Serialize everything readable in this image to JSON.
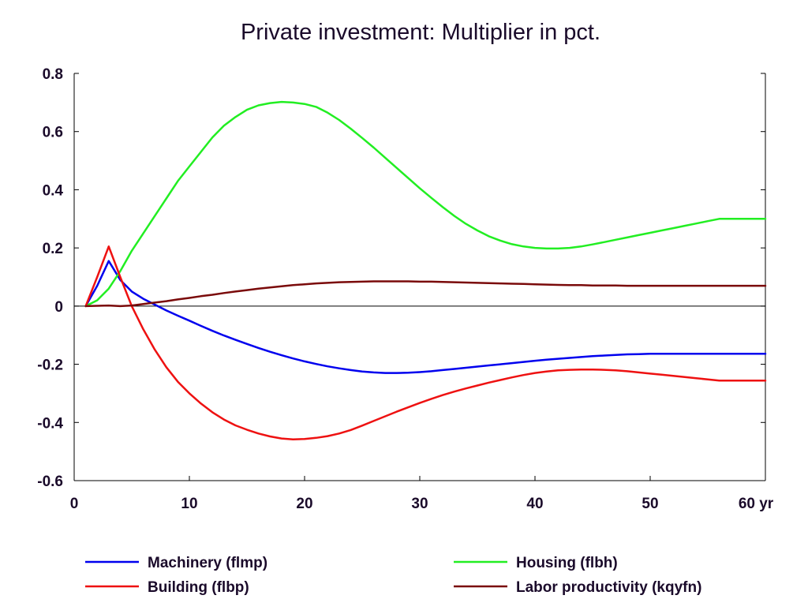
{
  "chart_data": {
    "type": "line",
    "title": "Private investment: Multiplier in pct.",
    "xlabel": "",
    "ylabel": "",
    "x_unit_label": "yr",
    "xlim": [
      0,
      60
    ],
    "ylim": [
      -0.6,
      0.8
    ],
    "x_ticks": [
      0,
      10,
      20,
      30,
      40,
      50,
      60
    ],
    "x_tick_labels": [
      "0",
      "10",
      "20",
      "30",
      "40",
      "50",
      "60 yr"
    ],
    "y_ticks": [
      -0.6,
      -0.4,
      -0.2,
      0,
      0.2,
      0.4,
      0.6,
      0.8
    ],
    "y_tick_labels": [
      "-0.6",
      "-0.4",
      "-0.2",
      "0",
      "0.2",
      "0.4",
      "0.6",
      "0.8"
    ],
    "grid": false,
    "zero_line": true,
    "legend_position": "bottom",
    "x": [
      1,
      2,
      3,
      4,
      5,
      6,
      7,
      8,
      9,
      10,
      11,
      12,
      13,
      14,
      15,
      16,
      17,
      18,
      19,
      20,
      21,
      22,
      23,
      24,
      25,
      26,
      27,
      28,
      29,
      30,
      31,
      32,
      33,
      34,
      35,
      36,
      37,
      38,
      39,
      40,
      41,
      42,
      43,
      44,
      45,
      46,
      47,
      48,
      49,
      50,
      51,
      52,
      53,
      54,
      55,
      56,
      57,
      58,
      59,
      60
    ],
    "series": [
      {
        "name": "Machinery (flmp)",
        "color": "#0000ee",
        "values": [
          0,
          0.07,
          0.155,
          0.09,
          0.05,
          0.025,
          0.005,
          -0.015,
          -0.033,
          -0.05,
          -0.068,
          -0.085,
          -0.101,
          -0.116,
          -0.13,
          -0.144,
          -0.157,
          -0.169,
          -0.18,
          -0.19,
          -0.199,
          -0.207,
          -0.214,
          -0.22,
          -0.225,
          -0.228,
          -0.23,
          -0.23,
          -0.229,
          -0.227,
          -0.224,
          -0.22,
          -0.216,
          -0.212,
          -0.208,
          -0.204,
          -0.2,
          -0.196,
          -0.192,
          -0.188,
          -0.184,
          -0.181,
          -0.178,
          -0.175,
          -0.172,
          -0.17,
          -0.168,
          -0.166,
          -0.165,
          -0.164,
          -0.164,
          -0.164,
          -0.164,
          -0.164,
          -0.164,
          -0.164,
          -0.164,
          -0.164,
          -0.164,
          -0.164
        ]
      },
      {
        "name": "Housing (flbh)",
        "color": "#22ee22",
        "values": [
          0,
          0.02,
          0.06,
          0.12,
          0.19,
          0.25,
          0.31,
          0.37,
          0.43,
          0.48,
          0.53,
          0.58,
          0.62,
          0.65,
          0.675,
          0.69,
          0.698,
          0.702,
          0.7,
          0.695,
          0.685,
          0.665,
          0.64,
          0.61,
          0.578,
          0.545,
          0.51,
          0.475,
          0.44,
          0.405,
          0.372,
          0.34,
          0.31,
          0.283,
          0.26,
          0.24,
          0.225,
          0.213,
          0.205,
          0.2,
          0.198,
          0.198,
          0.2,
          0.205,
          0.212,
          0.22,
          0.228,
          0.236,
          0.244,
          0.252,
          0.26,
          0.268,
          0.276,
          0.284,
          0.292,
          0.3,
          0.3,
          0.3,
          0.3,
          0.3
        ]
      },
      {
        "name": "Building (flbp)",
        "color": "#ee1111",
        "values": [
          0,
          0.1,
          0.205,
          0.1,
          0.0,
          -0.08,
          -0.15,
          -0.21,
          -0.26,
          -0.3,
          -0.335,
          -0.365,
          -0.39,
          -0.41,
          -0.425,
          -0.438,
          -0.448,
          -0.455,
          -0.458,
          -0.457,
          -0.453,
          -0.447,
          -0.438,
          -0.426,
          -0.411,
          -0.395,
          -0.379,
          -0.363,
          -0.348,
          -0.333,
          -0.319,
          -0.306,
          -0.294,
          -0.283,
          -0.273,
          -0.263,
          -0.254,
          -0.245,
          -0.237,
          -0.23,
          -0.225,
          -0.221,
          -0.219,
          -0.218,
          -0.218,
          -0.219,
          -0.221,
          -0.224,
          -0.228,
          -0.232,
          -0.236,
          -0.24,
          -0.244,
          -0.248,
          -0.252,
          -0.256,
          -0.256,
          -0.256,
          -0.256,
          -0.256
        ]
      },
      {
        "name": "Labor productivity (kqyfn)",
        "color": "#7a0a0a",
        "values": [
          0,
          0.001,
          0.002,
          0.0,
          0.002,
          0.007,
          0.012,
          0.017,
          0.023,
          0.028,
          0.034,
          0.039,
          0.045,
          0.05,
          0.055,
          0.06,
          0.064,
          0.068,
          0.072,
          0.075,
          0.078,
          0.08,
          0.082,
          0.083,
          0.084,
          0.085,
          0.085,
          0.085,
          0.085,
          0.084,
          0.084,
          0.083,
          0.082,
          0.081,
          0.08,
          0.079,
          0.078,
          0.077,
          0.076,
          0.075,
          0.074,
          0.073,
          0.072,
          0.072,
          0.071,
          0.071,
          0.071,
          0.07,
          0.07,
          0.07,
          0.07,
          0.07,
          0.07,
          0.07,
          0.07,
          0.07,
          0.07,
          0.07,
          0.07,
          0.07
        ]
      }
    ]
  }
}
